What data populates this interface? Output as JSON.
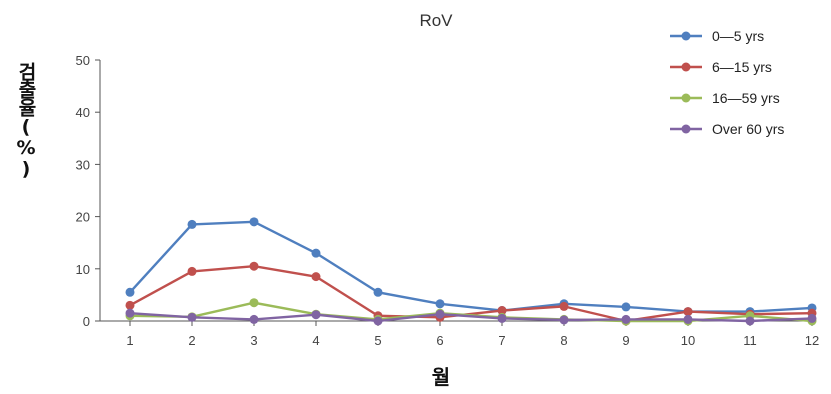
{
  "chart_data": {
    "type": "line",
    "title": "RoV",
    "xlabel": "월",
    "ylabel": "검출율(%)",
    "x": [
      1,
      2,
      3,
      4,
      5,
      6,
      7,
      8,
      9,
      10,
      11,
      12
    ],
    "ylim": [
      0,
      50
    ],
    "yticks": [
      0,
      10,
      20,
      30,
      40,
      50
    ],
    "grid": false,
    "legend_position": "top-right",
    "series": [
      {
        "name": "0—5 yrs",
        "color": "#4f7fbf",
        "values": [
          5.5,
          18.5,
          19.0,
          13.0,
          5.5,
          3.3,
          2.0,
          3.3,
          2.7,
          1.8,
          1.8,
          2.5
        ]
      },
      {
        "name": "6—15 yrs",
        "color": "#c0504d",
        "values": [
          3.0,
          9.5,
          10.5,
          8.5,
          1.0,
          0.7,
          2.0,
          2.8,
          0.0,
          1.8,
          1.3,
          1.5
        ]
      },
      {
        "name": "16—59 yrs",
        "color": "#9bbb59",
        "values": [
          1.0,
          0.8,
          3.5,
          1.3,
          0.3,
          1.5,
          0.7,
          0.3,
          0.0,
          0.0,
          1.0,
          0.0
        ]
      },
      {
        "name": "Over 60 yrs",
        "color": "#8064a2",
        "values": [
          1.5,
          0.7,
          0.3,
          1.2,
          0.0,
          1.3,
          0.5,
          0.2,
          0.3,
          0.3,
          0.0,
          0.5
        ]
      }
    ]
  }
}
